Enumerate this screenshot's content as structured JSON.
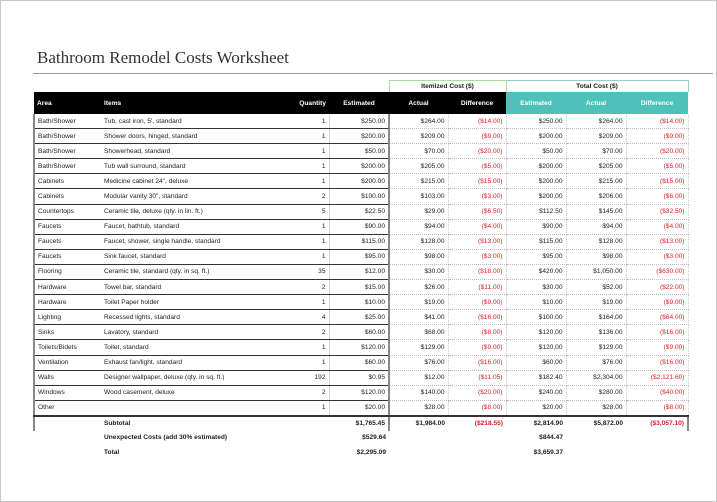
{
  "title": "Bathroom Remodel Costs Worksheet",
  "groups": {
    "itemized": "Itemized Cost ($)",
    "total": "Total Cost ($)"
  },
  "headers": {
    "area": "Area",
    "items": "Items",
    "quantity": "Quantity",
    "estimated": "Estimated",
    "actual": "Actual",
    "difference": "Difference",
    "t_estimated": "Estimated",
    "t_actual": "Actual",
    "t_difference": "Difference"
  },
  "colors": {
    "header_bg": "#000000",
    "total_header_bg": "#4fc1b8",
    "negative": "#e0202a"
  },
  "rows": [
    [
      "Bath/Shower",
      "Tub, cast iron, 5', standard",
      "1",
      "$250.00",
      "$264.00",
      "($14.00)",
      "$250.00",
      "$264.00",
      "($14.00)"
    ],
    [
      "Bath/Shower",
      "Shower doors, hinged, standard",
      "1",
      "$200.00",
      "$209.00",
      "($9.00)",
      "$200.00",
      "$209.00",
      "($9.00)"
    ],
    [
      "Bath/Shower",
      "Showerhead, standard",
      "1",
      "$50.00",
      "$70.00",
      "($20.00)",
      "$50.00",
      "$70.00",
      "($20.00)"
    ],
    [
      "Bath/Shower",
      "Tub wall surround, standard",
      "1",
      "$200.00",
      "$205.00",
      "($5.00)",
      "$200.00",
      "$205.00",
      "($5.00)"
    ],
    [
      "Cabinets",
      "Medicine cabinet 24\", deluxe",
      "1",
      "$200.00",
      "$215.00",
      "($15.00)",
      "$200.00",
      "$215.00",
      "($15.00)"
    ],
    [
      "Cabinets",
      "Modular vanity 30\", standard",
      "2",
      "$100.00",
      "$103.00",
      "($3.00)",
      "$200.00",
      "$206.00",
      "($6.00)"
    ],
    [
      "Countertops",
      "Ceramic tile, deluxe (qty. in lin. ft.)",
      "5",
      "$22.50",
      "$29.00",
      "($6.50)",
      "$112.50",
      "$145.00",
      "($32.50)"
    ],
    [
      "Faucets",
      "Faucet, bathtub, standard",
      "1",
      "$90.00",
      "$94.00",
      "($4.00)",
      "$90.00",
      "$94.00",
      "($4.00)"
    ],
    [
      "Faucets",
      "Faucet, shower, single handle, standard",
      "1",
      "$115.00",
      "$128.00",
      "($13.00)",
      "$115.00",
      "$128.00",
      "($13.00)"
    ],
    [
      "Faucets",
      "Sink faucet, standard",
      "1",
      "$95.00",
      "$98.00",
      "($3.00)",
      "$95.00",
      "$98.00",
      "($3.00)"
    ],
    [
      "Flooring",
      "Ceramic tile, standard (qty. in sq. ft.)",
      "35",
      "$12.00",
      "$30.00",
      "($18.00)",
      "$420.00",
      "$1,050.00",
      "($630.00)"
    ],
    [
      "Hardware",
      "Towel bar, standard",
      "2",
      "$15.00",
      "$26.00",
      "($11.00)",
      "$30.00",
      "$52.00",
      "($22.00)"
    ],
    [
      "Hardware",
      "Toilet Paper holder",
      "1",
      "$10.00",
      "$19.00",
      "($9.00)",
      "$10.00",
      "$19.00",
      "($9.00)"
    ],
    [
      "Lighting",
      "Recessed lights, standard",
      "4",
      "$25.00",
      "$41.00",
      "($16.00)",
      "$100.00",
      "$164.00",
      "($64.00)"
    ],
    [
      "Sinks",
      "Lavatory, standard",
      "2",
      "$60.00",
      "$68.00",
      "($8.00)",
      "$120.00",
      "$136.00",
      "($16.00)"
    ],
    [
      "Toilets/Bidets",
      "Toilet, standard",
      "1",
      "$120.00",
      "$129.00",
      "($9.00)",
      "$120.00",
      "$129.00",
      "($9.00)"
    ],
    [
      "Ventilation",
      "Exhaust fan/light, standard",
      "1",
      "$60.00",
      "$76.00",
      "($16.00)",
      "$60.00",
      "$76.00",
      "($16.00)"
    ],
    [
      "Walls",
      "Designer wallpaper, deluxe (qty. in sq. ft.)",
      "192",
      "$0.95",
      "$12.00",
      "($11.05)",
      "$182.40",
      "$2,304.00",
      "($2,121.60)"
    ],
    [
      "Windows",
      "Wood casement, deluxe",
      "2",
      "$120.00",
      "$140.00",
      "($20.00)",
      "$240.00",
      "$280.00",
      "($40.00)"
    ],
    [
      "Other",
      "",
      "1",
      "$20.00",
      "$28.00",
      "($8.00)",
      "$20.00",
      "$28.00",
      "($8.00)"
    ]
  ],
  "subtotal": {
    "label": "Subtotal",
    "estimated": "$1,765.45",
    "actual": "$1,984.00",
    "difference": "($218.55)",
    "t_estimated": "$2,814.90",
    "t_actual": "$5,872.00",
    "t_difference": "($3,057.10)"
  },
  "unexpected": {
    "label": "Unexpected Costs (add 30% estimated)",
    "estimated": "$529.64",
    "t_estimated": "$844.47"
  },
  "total": {
    "label": "Total",
    "estimated": "$2,295.09",
    "t_estimated": "$3,659.37"
  }
}
